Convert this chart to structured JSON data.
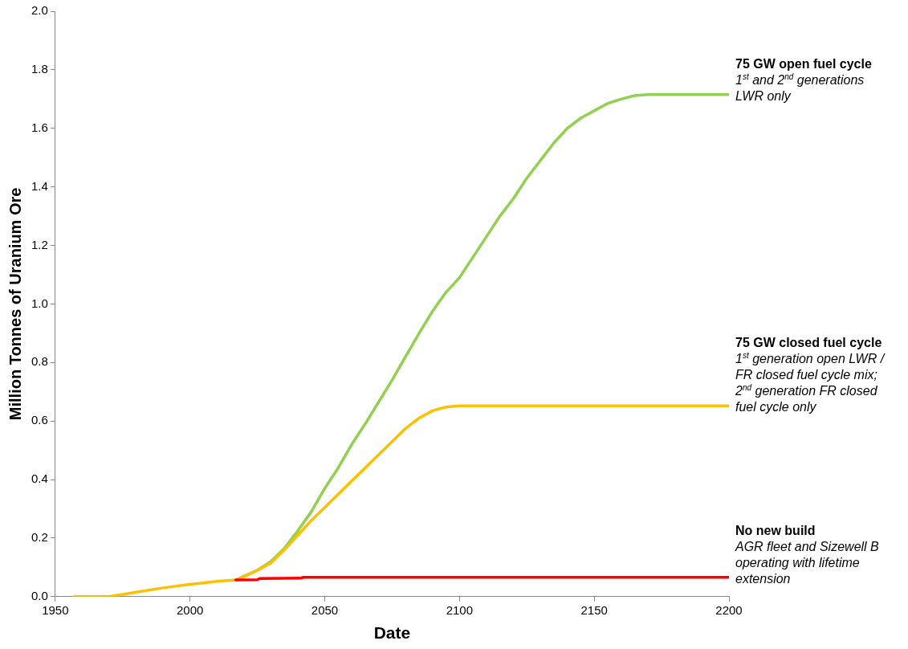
{
  "chart_data": {
    "type": "line",
    "xlabel": "Date",
    "ylabel": "Million Tonnes of Uranium Ore",
    "xlim": [
      1950,
      2200
    ],
    "xticks": [
      1950,
      2000,
      2050,
      2100,
      2150,
      2200
    ],
    "ylim": [
      0,
      2
    ],
    "yticks": [
      {
        "value": 0,
        "label": "0.0"
      },
      {
        "value": 0.2,
        "label": "0.2"
      },
      {
        "value": 0.4,
        "label": "0.4"
      },
      {
        "value": 0.6,
        "label": "0.6"
      },
      {
        "value": 0.8,
        "label": "0.8"
      },
      {
        "value": 1,
        "label": "1.0"
      },
      {
        "value": 1.2,
        "label": "1.2"
      },
      {
        "value": 1.4,
        "label": "1.4"
      },
      {
        "value": 1.6,
        "label": "1.6"
      },
      {
        "value": 1.8,
        "label": "1.8"
      },
      {
        "value": 2,
        "label": "2.0"
      }
    ],
    "grid": false,
    "legend": false,
    "marker": "none",
    "line_style": "solid",
    "series": [
      {
        "name": "75 GW open fuel cycle",
        "color": "#92d050",
        "x": [
          2017,
          2020,
          2025,
          2030,
          2035,
          2040,
          2045,
          2050,
          2055,
          2060,
          2065,
          2070,
          2075,
          2080,
          2085,
          2090,
          2095,
          2100,
          2105,
          2110,
          2115,
          2120,
          2125,
          2130,
          2135,
          2140,
          2145,
          2150,
          2155,
          2160,
          2165,
          2170,
          2200
        ],
        "values": [
          0.057,
          0.07,
          0.09,
          0.12,
          0.165,
          0.225,
          0.29,
          0.37,
          0.44,
          0.52,
          0.59,
          0.665,
          0.74,
          0.82,
          0.9,
          0.975,
          1.04,
          1.09,
          1.16,
          1.23,
          1.3,
          1.36,
          1.43,
          1.49,
          1.55,
          1.6,
          1.635,
          1.66,
          1.685,
          1.7,
          1.712,
          1.715,
          1.715
        ]
      },
      {
        "name": "75 GW closed fuel cycle",
        "color": "#ffc000",
        "x": [
          1957,
          1970,
          1980,
          1990,
          2000,
          2010,
          2017,
          2020,
          2025,
          2030,
          2035,
          2040,
          2045,
          2050,
          2055,
          2060,
          2065,
          2070,
          2075,
          2080,
          2085,
          2090,
          2095,
          2100,
          2200
        ],
        "values": [
          0,
          0,
          0.015,
          0.03,
          0.042,
          0.052,
          0.057,
          0.068,
          0.09,
          0.115,
          0.16,
          0.21,
          0.26,
          0.305,
          0.35,
          0.395,
          0.44,
          0.485,
          0.53,
          0.575,
          0.61,
          0.635,
          0.648,
          0.652,
          0.652
        ]
      },
      {
        "name": "No new build",
        "color": "#ff0000",
        "x": [
          2017,
          2025,
          2026,
          2041,
          2042,
          2200
        ],
        "values": [
          0.057,
          0.058,
          0.062,
          0.063,
          0.066,
          0.066
        ]
      }
    ],
    "annotations": [
      "1$^{st}$ and 2$^{nd}$ generations LWR only",
      "1$^{st}$ generation open LWR / FR closed fuel cycle mix; 2$^{nd}$ generation FR closed fuel cycle only",
      "AGR fleet and Sizewell B operating with lifetime extension"
    ]
  }
}
